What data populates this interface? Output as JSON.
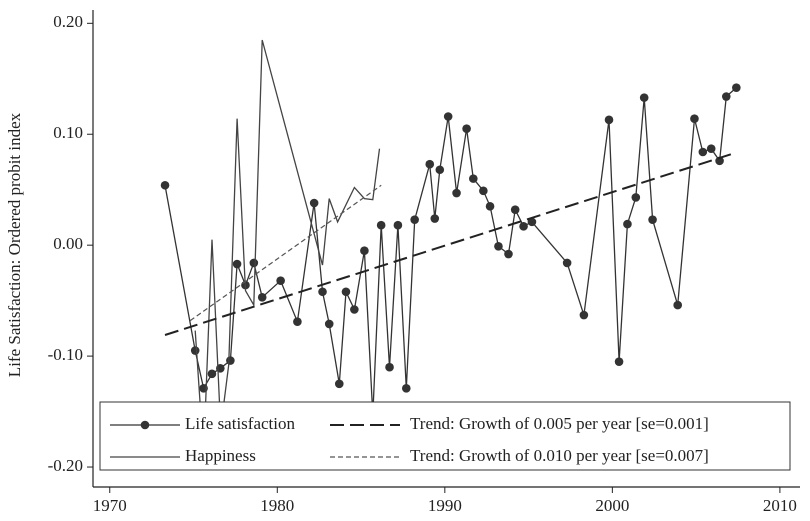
{
  "chart_data": {
    "type": "line",
    "y_label": "Life Satisfaction: Ordered probit index",
    "xlim": [
      1969,
      2011.2
    ],
    "ylim": [
      -0.218,
      0.212
    ],
    "xticks": [
      1970,
      1980,
      1990,
      2000,
      2010
    ],
    "yticks": [
      {
        "value": 0.2,
        "label": "0.20"
      },
      {
        "value": 0.1,
        "label": "0.10"
      },
      {
        "value": 0,
        "label": "0.00"
      },
      {
        "value": -0.1,
        "label": "-0.10"
      },
      {
        "value": -0.2,
        "label": "-0.20"
      }
    ],
    "series": [
      {
        "name": "Life satisfaction",
        "color": "#333333",
        "style": "solid",
        "marker": "circle",
        "x": [
          1973.3,
          1975.1,
          1975.6,
          1976.1,
          1976.6,
          1977.2,
          1977.6,
          1978.1,
          1978.6,
          1979.1,
          1980.2,
          1981.2,
          1982.2,
          1982.7,
          1983.1,
          1983.7,
          1984.1,
          1984.6,
          1985.2,
          1985.7,
          1986.2,
          1986.7,
          1987.2,
          1987.7,
          1988.2,
          1989.1,
          1989.4,
          1989.7,
          1990.2,
          1990.7,
          1991.3,
          1991.7,
          1992.3,
          1992.7,
          1993.2,
          1993.8,
          1994.2,
          1994.7,
          1995.2,
          1997.3,
          1998.3,
          1999.8,
          2000.4,
          2000.9,
          2001.4,
          2001.9,
          2002.4,
          2003.9,
          2004.9,
          2005.4,
          2005.9,
          2006.4,
          2006.8,
          2007.4
        ],
        "values": [
          0.054,
          -0.095,
          -0.129,
          -0.116,
          -0.111,
          -0.104,
          -0.017,
          -0.036,
          -0.016,
          -0.047,
          -0.032,
          -0.069,
          0.038,
          -0.042,
          -0.071,
          -0.125,
          -0.042,
          -0.058,
          -0.005,
          -0.153,
          0.018,
          -0.11,
          0.018,
          -0.129,
          0.023,
          0.073,
          0.024,
          0.068,
          0.116,
          0.047,
          0.105,
          0.06,
          0.049,
          0.035,
          -0.001,
          -0.008,
          0.032,
          0.017,
          0.021,
          -0.016,
          -0.063,
          0.113,
          -0.105,
          0.019,
          0.043,
          0.133,
          0.023,
          -0.054,
          0.114,
          0.084,
          0.087,
          0.076,
          0.134,
          0.142
        ]
      },
      {
        "name": "Happiness",
        "color": "#444444",
        "style": "solid",
        "x": [
          1975.1,
          1975.6,
          1976.1,
          1976.6,
          1976.6,
          1977.1,
          1977.6,
          1978.1,
          1978.6,
          1979.1,
          1982.7,
          1983.1,
          1983.6,
          1984.6,
          1985.2,
          1985.7,
          1986.1
        ],
        "values": [
          -0.077,
          -0.189,
          0.005,
          -0.158,
          -0.168,
          -0.108,
          0.114,
          -0.041,
          -0.054,
          0.185,
          -0.018,
          0.042,
          0.021,
          0.052,
          0.042,
          0.041,
          0.087
        ]
      },
      {
        "name": "Trend: Growth of 0.005 per year [se=0.001]",
        "color": "#222222",
        "style": "long-dash",
        "x": [
          1973.3,
          2007.3
        ],
        "values": [
          -0.081,
          0.083
        ]
      },
      {
        "name": "Trend: Growth of 0.010 per year [se=0.007]",
        "color": "#555555",
        "style": "short-dash",
        "x": [
          1974.8,
          1986.2
        ],
        "values": [
          -0.068,
          0.054
        ]
      }
    ]
  }
}
